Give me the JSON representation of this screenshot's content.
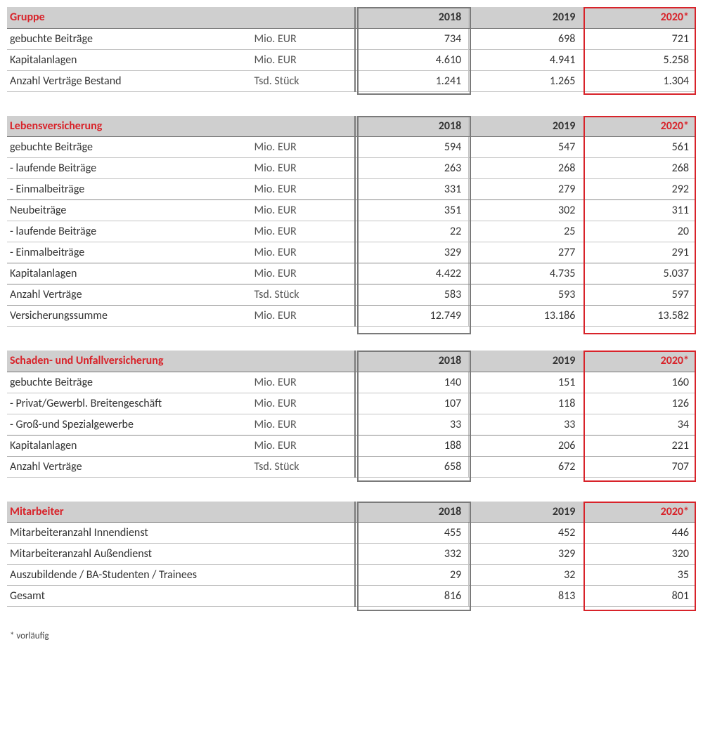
{
  "columns": {
    "y18": "2018",
    "y19": "2019",
    "y20": "2020*"
  },
  "units": {
    "mio": "Mio. EUR",
    "tsd": "Tsd. Stück"
  },
  "footnote": "* vorläufig",
  "sections": [
    {
      "title": "Gruppe",
      "rows": [
        {
          "label": "gebuchte Beiträge",
          "unit": "mio",
          "v": [
            "734",
            "698",
            "721"
          ],
          "break": false
        },
        {
          "label": "Kapitalanlagen",
          "unit": "mio",
          "v": [
            "4.610",
            "4.941",
            "5.258"
          ],
          "break": false
        },
        {
          "label": "Anzahl Verträge Bestand",
          "unit": "tsd",
          "v": [
            "1.241",
            "1.265",
            "1.304"
          ],
          "break": false
        }
      ]
    },
    {
      "title": "Lebensversicherung",
      "rows": [
        {
          "label": "gebuchte Beiträge",
          "unit": "mio",
          "v": [
            "594",
            "547",
            "561"
          ],
          "break": false
        },
        {
          "label": "- laufende Beiträge",
          "unit": "mio",
          "v": [
            "263",
            "268",
            "268"
          ],
          "break": false
        },
        {
          "label": "- Einmalbeiträge",
          "unit": "mio",
          "v": [
            "331",
            "279",
            "292"
          ],
          "break": true
        },
        {
          "label": "Neubeiträge",
          "unit": "mio",
          "v": [
            "351",
            "302",
            "311"
          ],
          "break": false
        },
        {
          "label": "- laufende Beiträge",
          "unit": "mio",
          "v": [
            "22",
            "25",
            "20"
          ],
          "break": false
        },
        {
          "label": "- Einmalbeiträge",
          "unit": "mio",
          "v": [
            "329",
            "277",
            "291"
          ],
          "break": true
        },
        {
          "label": "Kapitalanlagen",
          "unit": "mio",
          "v": [
            "4.422",
            "4.735",
            "5.037"
          ],
          "break": true
        },
        {
          "label": "Anzahl Verträge",
          "unit": "tsd",
          "v": [
            "583",
            "593",
            "597"
          ],
          "break": true
        },
        {
          "label": "Versicherungssumme",
          "unit": "mio",
          "v": [
            "12.749",
            "13.186",
            "13.582"
          ],
          "break": false
        }
      ]
    },
    {
      "title": "Schaden- und Unfallversicherung",
      "rows": [
        {
          "label": "gebuchte Beiträge",
          "unit": "mio",
          "v": [
            "140",
            "151",
            "160"
          ],
          "break": false
        },
        {
          "label": "- Privat/Gewerbl. Breitengeschäft",
          "unit": "mio",
          "v": [
            "107",
            "118",
            "126"
          ],
          "break": false
        },
        {
          "label": "- Groß-und Spezialgewerbe",
          "unit": "mio",
          "v": [
            "33",
            "33",
            "34"
          ],
          "break": true
        },
        {
          "label": "Kapitalanlagen",
          "unit": "mio",
          "v": [
            "188",
            "206",
            "221"
          ],
          "break": true
        },
        {
          "label": "Anzahl Verträge",
          "unit": "tsd",
          "v": [
            "658",
            "672",
            "707"
          ],
          "break": false
        }
      ]
    },
    {
      "title": "Mitarbeiter",
      "rows": [
        {
          "label": "Mitarbeiteranzahl Innendienst",
          "unit": "",
          "v": [
            "455",
            "452",
            "446"
          ],
          "break": false
        },
        {
          "label": "Mitarbeiteranzahl Außendienst",
          "unit": "",
          "v": [
            "332",
            "329",
            "320"
          ],
          "break": false
        },
        {
          "label": "Auszubildende / BA-Studenten / Trainees",
          "unit": "",
          "v": [
            "29",
            "32",
            "35"
          ],
          "break": false
        },
        {
          "label": "Gesamt",
          "unit": "",
          "v": [
            "816",
            "813",
            "801"
          ],
          "break": false
        }
      ]
    }
  ],
  "style": {
    "accent": "#d8232a",
    "header_bg": "#cfcfcf",
    "grid": "#c4c4c4",
    "grid_strong": "#888888",
    "col_outline": "#7a7a7a",
    "font_size": 16
  }
}
